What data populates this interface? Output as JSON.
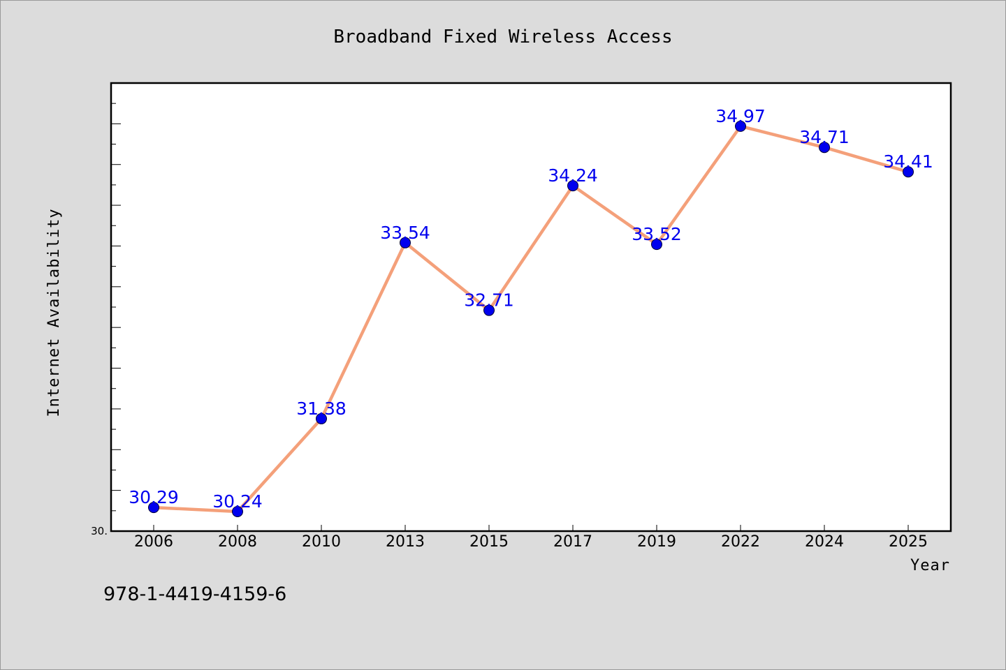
{
  "chart_data": {
    "type": "line",
    "title": "Broadband Fixed Wireless Access",
    "xlabel": "Year",
    "ylabel": "Internet Availability",
    "categories": [
      "2006",
      "2008",
      "2010",
      "2013",
      "2015",
      "2017",
      "2019",
      "2022",
      "2024",
      "2025"
    ],
    "series": [
      {
        "values": [
          30.29,
          30.24,
          31.38,
          33.54,
          32.71,
          34.24,
          33.52,
          34.97,
          34.71,
          34.41
        ],
        "labels": [
          "30.29",
          "30.24",
          "31.38",
          "33.54",
          "32.71",
          "34.24",
          "33.52",
          "34.97",
          "34.71",
          "34.41"
        ]
      }
    ],
    "ylim": [
      30.0,
      35.5
    ],
    "y_tick_label": "30.",
    "grid": false,
    "legend": "none",
    "colors": {
      "line": "#f4a07a",
      "marker": "#0000ee",
      "label": "#0000ee",
      "plot_bg": "#ffffff",
      "page_bg": "#dcdcdc"
    }
  },
  "footer": {
    "isbn": "978-1-4419-4159-6"
  }
}
